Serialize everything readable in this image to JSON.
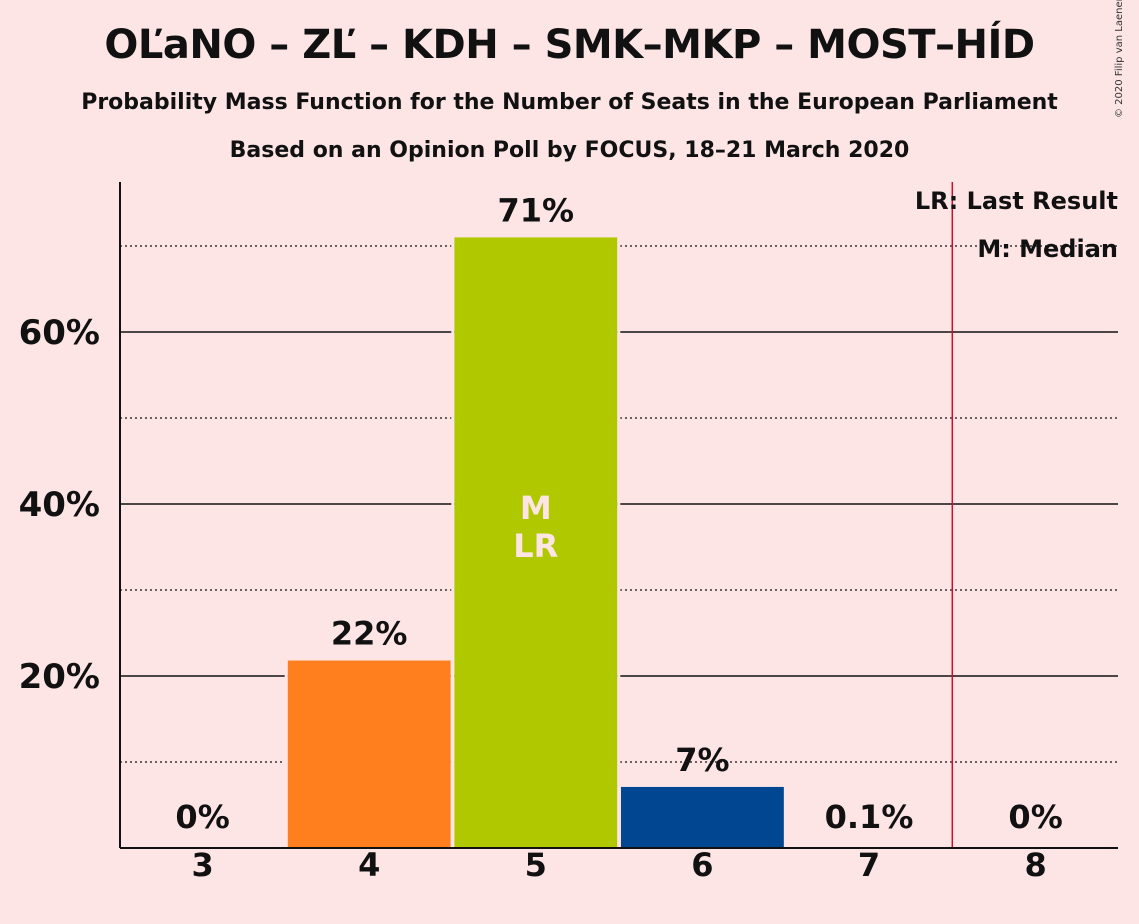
{
  "title": "OĽaNO – ZĽ – KDH – SMK–MKP – MOST–HÍD",
  "subtitle": "Probability Mass Function for the Number of Seats in the European Parliament",
  "subtitle2": "Based on an Opinion Poll by FOCUS, 18–21 March 2020",
  "copyright": "© 2020 Filip van Laenen",
  "legend": {
    "last_result": "LR: Last Result",
    "median": "M: Median"
  },
  "colors": {
    "background": "#FDE5E6",
    "last_result_line": "#C8102E",
    "text": "#111111",
    "median_marker": "#FDE5E6"
  },
  "chart_data": {
    "type": "bar",
    "categories": [
      "3",
      "4",
      "5",
      "6",
      "7",
      "8"
    ],
    "values": [
      0,
      21.8,
      71,
      7.1,
      0.1,
      0
    ],
    "value_labels": [
      "0%",
      "22%",
      "71%",
      "7%",
      "0.1%",
      "0%"
    ],
    "bar_colors": [
      "#FDE5E6",
      "#FF7F1F",
      "#B0C800",
      "#004690",
      "#FDE5E6",
      "#FDE5E6"
    ],
    "ylim": [
      0,
      77
    ],
    "y_ticks": [
      20,
      40,
      60
    ],
    "y_tick_labels": [
      "20%",
      "40%",
      "60%"
    ],
    "y_minor_gridlines": [
      10,
      30,
      50,
      70
    ],
    "median_seats": "5",
    "last_result_seats": "5",
    "bar_markers": [
      "M",
      "LR"
    ],
    "last_result_threshold_line": 7.5,
    "grid": true,
    "legend_position": "top-right"
  }
}
